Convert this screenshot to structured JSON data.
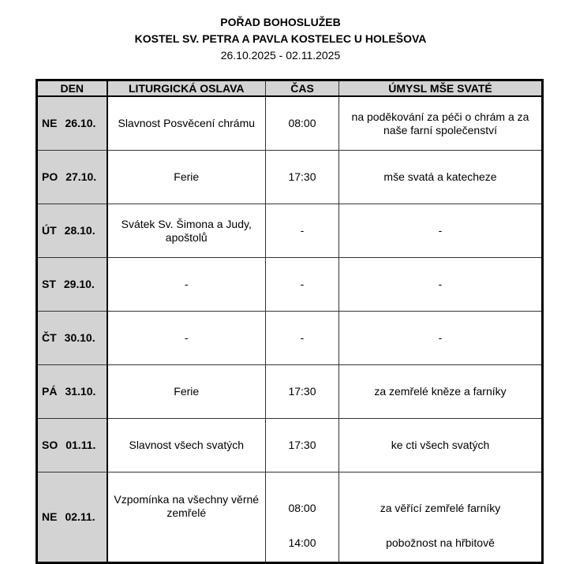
{
  "header": {
    "title": "POŘAD BOHOSLUŽEB",
    "subtitle": "KOSTEL SV. PETRA A PAVLA KOSTELEC U HOLEŠOVA",
    "dates": "26.10.2025 - 02.11.2025"
  },
  "columns": [
    "DEN",
    "LITURGICKÁ OSLAVA",
    "ČAS",
    "ÚMYSL MŠE SVATÉ"
  ],
  "rows": [
    {
      "day": "NE",
      "date": "26.10.",
      "feast": "Slavnost Posvěcení chrámu",
      "time": "08:00",
      "intention": "na poděkování za péči o chrám a za naše farní společenství"
    },
    {
      "day": "PO",
      "date": "27.10.",
      "feast": "Ferie",
      "time": "17:30",
      "intention": "mše svatá a katecheze"
    },
    {
      "day": "ÚT",
      "date": "28.10.",
      "feast": "Svátek Sv. Šimona a Judy, apoštolů",
      "time": "-",
      "intention": "-"
    },
    {
      "day": "ST",
      "date": "29.10.",
      "feast": "-",
      "time": "-",
      "intention": "-"
    },
    {
      "day": "ČT",
      "date": "30.10.",
      "feast": "-",
      "time": "-",
      "intention": "-"
    },
    {
      "day": "PÁ",
      "date": "31.10.",
      "feast": "Ferie",
      "time": "17:30",
      "intention": "za zemřelé kněze a farníky"
    },
    {
      "day": "SO",
      "date": "01.11.",
      "feast": "Slavnost všech svatých",
      "time": "17:30",
      "intention": "ke cti všech svatých"
    }
  ],
  "last": {
    "day": "NE",
    "date": "02.11.",
    "feast": "Vzpomínka na všechny věrné zemřelé",
    "time1": "08:00",
    "intention1": "za věřící zemřelé farníky",
    "time2": "14:00",
    "intention2": "pobožnost na hřbitově"
  }
}
